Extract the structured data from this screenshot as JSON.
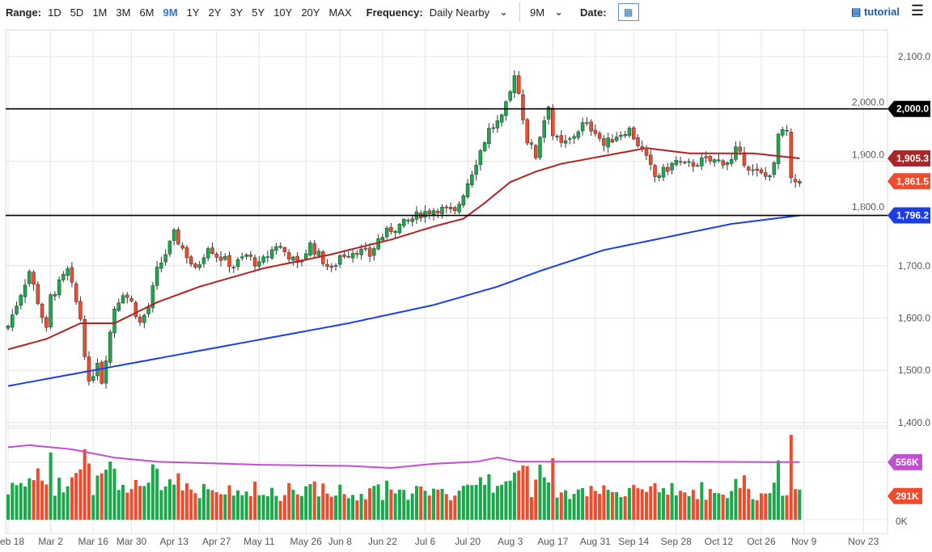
{
  "toolbar": {
    "range_label": "Range:",
    "ranges": [
      "1D",
      "5D",
      "1M",
      "3M",
      "6M",
      "9M",
      "1Y",
      "2Y",
      "3Y",
      "5Y",
      "10Y",
      "20Y",
      "MAX"
    ],
    "active_range": "9M",
    "frequency_label": "Frequency:",
    "frequency_value": "Daily Nearby",
    "period_value": "9M",
    "date_label": "Date:",
    "tutorial_label": "tutorial"
  },
  "colors": {
    "up": "#19a84a",
    "down": "#ef4b2c",
    "ma_short": "#b22222",
    "ma_long": "#1a3de8",
    "vol_avg": "#c050d0",
    "hline": "#000000"
  },
  "chart_data": {
    "type": "candlestick",
    "y_ticks": [
      "2,100.0",
      "2,000.0",
      "1,900.0",
      "1,800.0",
      "1,700.0",
      "1,600.0",
      "1,500.0",
      "1,400.0"
    ],
    "y_tick_values": [
      2100,
      2000,
      1900,
      1800,
      1700,
      1600,
      1500,
      1400
    ],
    "ylim": [
      1400,
      2100
    ],
    "x_ticks": [
      "eb 18",
      "Mar 2",
      "Mar 16",
      "Mar 30",
      "Apr 13",
      "Apr 27",
      "May 11",
      "May 26",
      "Jun 8",
      "Jun 22",
      "Jul 6",
      "Jul 20",
      "Aug 3",
      "Aug 17",
      "Aug 31",
      "Sep 14",
      "Sep 28",
      "Oct 12",
      "Oct 26",
      "Nov 9",
      "Nov 23"
    ],
    "x_tick_days": [
      0,
      10,
      20,
      29,
      39,
      49,
      59,
      70,
      78,
      88,
      98,
      108,
      118,
      128,
      138,
      147,
      157,
      167,
      177,
      187,
      201
    ],
    "total_days": 210,
    "close_path": [
      [
        0,
        1585
      ],
      [
        5,
        1690
      ],
      [
        9,
        1575
      ],
      [
        10,
        1640
      ],
      [
        14,
        1690
      ],
      [
        17,
        1600
      ],
      [
        19,
        1470
      ],
      [
        21,
        1520
      ],
      [
        22,
        1480
      ],
      [
        25,
        1620
      ],
      [
        27,
        1650
      ],
      [
        29,
        1630
      ],
      [
        31,
        1590
      ],
      [
        33,
        1620
      ],
      [
        35,
        1690
      ],
      [
        38,
        1740
      ],
      [
        39,
        1760
      ],
      [
        42,
        1720
      ],
      [
        44,
        1690
      ],
      [
        47,
        1740
      ],
      [
        49,
        1720
      ],
      [
        53,
        1700
      ],
      [
        56,
        1720
      ],
      [
        59,
        1700
      ],
      [
        63,
        1740
      ],
      [
        66,
        1720
      ],
      [
        68,
        1700
      ],
      [
        71,
        1740
      ],
      [
        74,
        1710
      ],
      [
        76,
        1690
      ],
      [
        78,
        1720
      ],
      [
        82,
        1730
      ],
      [
        85,
        1720
      ],
      [
        87,
        1750
      ],
      [
        90,
        1770
      ],
      [
        93,
        1780
      ],
      [
        97,
        1800
      ],
      [
        101,
        1810
      ],
      [
        105,
        1800
      ],
      [
        108,
        1860
      ],
      [
        110,
        1900
      ],
      [
        113,
        1960
      ],
      [
        116,
        1980
      ],
      [
        118,
        2030
      ],
      [
        119,
        2070
      ],
      [
        120,
        2030
      ],
      [
        122,
        1940
      ],
      [
        124,
        1910
      ],
      [
        125,
        1950
      ],
      [
        127,
        2010
      ],
      [
        128,
        1950
      ],
      [
        130,
        1930
      ],
      [
        132,
        1940
      ],
      [
        135,
        1970
      ],
      [
        138,
        1960
      ],
      [
        140,
        1930
      ],
      [
        143,
        1950
      ],
      [
        146,
        1960
      ],
      [
        149,
        1920
      ],
      [
        152,
        1870
      ],
      [
        154,
        1880
      ],
      [
        157,
        1900
      ],
      [
        159,
        1890
      ],
      [
        163,
        1900
      ],
      [
        166,
        1900
      ],
      [
        170,
        1900
      ],
      [
        171,
        1920
      ],
      [
        175,
        1880
      ],
      [
        178,
        1870
      ],
      [
        180,
        1890
      ],
      [
        181,
        1950
      ],
      [
        183,
        1955
      ],
      [
        184,
        1860
      ],
      [
        186,
        1861.5
      ]
    ],
    "ma_short": [
      [
        0,
        1540
      ],
      [
        9,
        1560
      ],
      [
        17,
        1590
      ],
      [
        25,
        1590
      ],
      [
        35,
        1630
      ],
      [
        45,
        1660
      ],
      [
        60,
        1695
      ],
      [
        75,
        1720
      ],
      [
        90,
        1750
      ],
      [
        100,
        1775
      ],
      [
        107,
        1790
      ],
      [
        112,
        1820
      ],
      [
        118,
        1860
      ],
      [
        124,
        1880
      ],
      [
        130,
        1895
      ],
      [
        140,
        1910
      ],
      [
        150,
        1925
      ],
      [
        160,
        1915
      ],
      [
        175,
        1915
      ],
      [
        186,
        1905.3
      ]
    ],
    "ma_long": [
      [
        0,
        1470
      ],
      [
        20,
        1500
      ],
      [
        40,
        1530
      ],
      [
        60,
        1560
      ],
      [
        80,
        1590
      ],
      [
        100,
        1625
      ],
      [
        115,
        1660
      ],
      [
        125,
        1690
      ],
      [
        140,
        1730
      ],
      [
        155,
        1755
      ],
      [
        170,
        1780
      ],
      [
        186,
        1796.2
      ]
    ],
    "hlines": [
      2000,
      1796.2
    ],
    "tags": [
      {
        "label": "2,000.0",
        "value": 2000,
        "color": "#000000"
      },
      {
        "label": "1,905.3",
        "value": 1905.3,
        "color": "#a8282a"
      },
      {
        "label": "1,861.5",
        "value": 1861.5,
        "color": "#ef4b2c"
      },
      {
        "label": "1,796.2",
        "value": 1796.2,
        "color": "#1a3de8"
      }
    ],
    "volume": {
      "zero_label": "0K",
      "avg_path": [
        [
          0,
          700
        ],
        [
          5,
          720
        ],
        [
          15,
          680
        ],
        [
          25,
          600
        ],
        [
          35,
          560
        ],
        [
          60,
          530
        ],
        [
          80,
          520
        ],
        [
          90,
          500
        ],
        [
          100,
          540
        ],
        [
          110,
          560
        ],
        [
          115,
          600
        ],
        [
          120,
          560
        ],
        [
          140,
          560
        ],
        [
          160,
          560
        ],
        [
          186,
          556
        ]
      ],
      "tags": [
        {
          "label": "556K",
          "value": 556,
          "color": "#c050d0"
        },
        {
          "label": "291K",
          "value": 291,
          "color": "#ef4b2c"
        }
      ]
    }
  }
}
